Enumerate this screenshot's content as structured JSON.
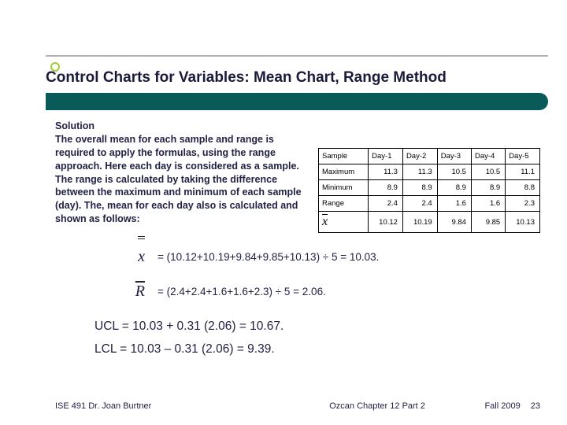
{
  "title": "Control Charts for Variables: Mean Chart, Range Method",
  "solution": {
    "heading": "Solution",
    "body": "The overall mean for each sample and range is required to apply the formulas, using the range approach.  Here each day is considered as a sample.  The range is calculated by taking the difference between the maximum and minimum of each sample (day).  The, mean for each day also is calculated and shown as follows:"
  },
  "table": {
    "columns": [
      "Sample",
      "Day-1",
      "Day-2",
      "Day-3",
      "Day-4",
      "Day-5"
    ],
    "rows": [
      {
        "label": "Maximum",
        "vals": [
          "11.3",
          "11.3",
          "10.5",
          "10.5",
          "11.1"
        ]
      },
      {
        "label": "Minimum",
        "vals": [
          "8.9",
          "8.9",
          "8.9",
          "8.9",
          "8.8"
        ]
      },
      {
        "label": "Range",
        "vals": [
          "2.4",
          "2.4",
          "1.6",
          "1.6",
          "2.3"
        ]
      },
      {
        "label": "XBAR",
        "vals": [
          "10.12",
          "10.19",
          "9.84",
          "9.85",
          "10.13"
        ]
      }
    ]
  },
  "calc": {
    "xdoublebar": "= (10.12+10.19+9.84+9.85+10.13) ÷ 5 = 10.03.",
    "rbar": "= (2.4+2.4+1.6+1.6+2.3) ÷ 5 = 2.06."
  },
  "limits": {
    "ucl": "UCL = 10.03 + 0.31 (2.06) = 10.67.",
    "lcl": "LCL = 10.03 – 0.31 (2.06) =   9.39."
  },
  "footer": {
    "left": "ISE 491  Dr. Joan Burtner",
    "mid": "Ozcan Chapter 12 Part 2",
    "right": "Fall 2009",
    "page": "23"
  },
  "colors": {
    "title_bar": "#0a5a5a",
    "bullet_ring": "#9acd32",
    "text": "#222244"
  }
}
